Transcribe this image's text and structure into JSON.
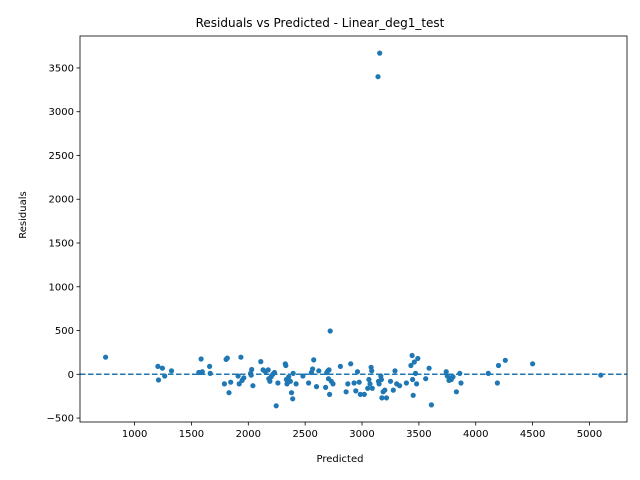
{
  "chart_data": {
    "type": "scatter",
    "title": "Residuals vs Predicted - Linear_deg1_test",
    "xlabel": "Predicted",
    "ylabel": "Residuals",
    "xlim": [
      520,
      5330
    ],
    "ylim": [
      -545,
      3865
    ],
    "xticks": [
      1000,
      1500,
      2000,
      2500,
      3000,
      3500,
      4000,
      4500,
      5000
    ],
    "yticks": [
      -500,
      0,
      500,
      1000,
      1500,
      2000,
      2500,
      3000,
      3500
    ],
    "grid": false,
    "point_color": "#1f77b4",
    "reference_line": {
      "y": 0,
      "style": "dashed",
      "color": "#1f77b4"
    },
    "points": [
      [
        745,
        195
      ],
      [
        1205,
        90
      ],
      [
        1210,
        -65
      ],
      [
        1245,
        70
      ],
      [
        1265,
        -20
      ],
      [
        1325,
        40
      ],
      [
        1565,
        20
      ],
      [
        1585,
        175
      ],
      [
        1595,
        30
      ],
      [
        1660,
        90
      ],
      [
        1665,
        10
      ],
      [
        1790,
        -110
      ],
      [
        1805,
        170
      ],
      [
        1815,
        185
      ],
      [
        1830,
        -210
      ],
      [
        1845,
        -90
      ],
      [
        1910,
        -20
      ],
      [
        1920,
        -110
      ],
      [
        1935,
        195
      ],
      [
        1945,
        -70
      ],
      [
        1960,
        -40
      ],
      [
        2020,
        10
      ],
      [
        2025,
        -10
      ],
      [
        2030,
        55
      ],
      [
        2040,
        -130
      ],
      [
        2110,
        145
      ],
      [
        2130,
        50
      ],
      [
        2150,
        30
      ],
      [
        2175,
        50
      ],
      [
        2180,
        -50
      ],
      [
        2190,
        -80
      ],
      [
        2200,
        -30
      ],
      [
        2215,
        0
      ],
      [
        2230,
        20
      ],
      [
        2245,
        -360
      ],
      [
        2260,
        -100
      ],
      [
        2325,
        120
      ],
      [
        2330,
        100
      ],
      [
        2335,
        -60
      ],
      [
        2340,
        -110
      ],
      [
        2355,
        -30
      ],
      [
        2370,
        -80
      ],
      [
        2380,
        -210
      ],
      [
        2390,
        -280
      ],
      [
        2395,
        10
      ],
      [
        2420,
        -110
      ],
      [
        2480,
        -20
      ],
      [
        2530,
        -100
      ],
      [
        2555,
        20
      ],
      [
        2565,
        60
      ],
      [
        2575,
        165
      ],
      [
        2600,
        -140
      ],
      [
        2620,
        40
      ],
      [
        2680,
        -150
      ],
      [
        2690,
        20
      ],
      [
        2700,
        40
      ],
      [
        2705,
        -50
      ],
      [
        2710,
        50
      ],
      [
        2715,
        -230
      ],
      [
        2720,
        495
      ],
      [
        2730,
        -80
      ],
      [
        2745,
        -110
      ],
      [
        2810,
        90
      ],
      [
        2860,
        -200
      ],
      [
        2875,
        -110
      ],
      [
        2900,
        120
      ],
      [
        2930,
        -100
      ],
      [
        2945,
        -190
      ],
      [
        2960,
        30
      ],
      [
        2975,
        -90
      ],
      [
        2985,
        -230
      ],
      [
        3020,
        -230
      ],
      [
        3050,
        -160
      ],
      [
        3060,
        -60
      ],
      [
        3070,
        -110
      ],
      [
        3080,
        80
      ],
      [
        3085,
        40
      ],
      [
        3090,
        -160
      ],
      [
        3140,
        3400
      ],
      [
        3145,
        -80
      ],
      [
        3150,
        -110
      ],
      [
        3155,
        3670
      ],
      [
        3165,
        -20
      ],
      [
        3170,
        -60
      ],
      [
        3175,
        -270
      ],
      [
        3185,
        -200
      ],
      [
        3200,
        -180
      ],
      [
        3215,
        -270
      ],
      [
        3250,
        -80
      ],
      [
        3275,
        -180
      ],
      [
        3290,
        40
      ],
      [
        3305,
        -110
      ],
      [
        3330,
        -130
      ],
      [
        3390,
        -100
      ],
      [
        3430,
        100
      ],
      [
        3440,
        215
      ],
      [
        3445,
        -60
      ],
      [
        3450,
        -240
      ],
      [
        3460,
        140
      ],
      [
        3470,
        10
      ],
      [
        3480,
        -110
      ],
      [
        3490,
        180
      ],
      [
        3560,
        -50
      ],
      [
        3590,
        70
      ],
      [
        3610,
        -350
      ],
      [
        3740,
        30
      ],
      [
        3750,
        -20
      ],
      [
        3765,
        -70
      ],
      [
        3780,
        -40
      ],
      [
        3785,
        -60
      ],
      [
        3800,
        -30
      ],
      [
        3830,
        -200
      ],
      [
        3860,
        10
      ],
      [
        3870,
        -100
      ],
      [
        4110,
        10
      ],
      [
        4190,
        -100
      ],
      [
        4200,
        100
      ],
      [
        4260,
        160
      ],
      [
        4500,
        120
      ],
      [
        5100,
        -10
      ]
    ]
  }
}
